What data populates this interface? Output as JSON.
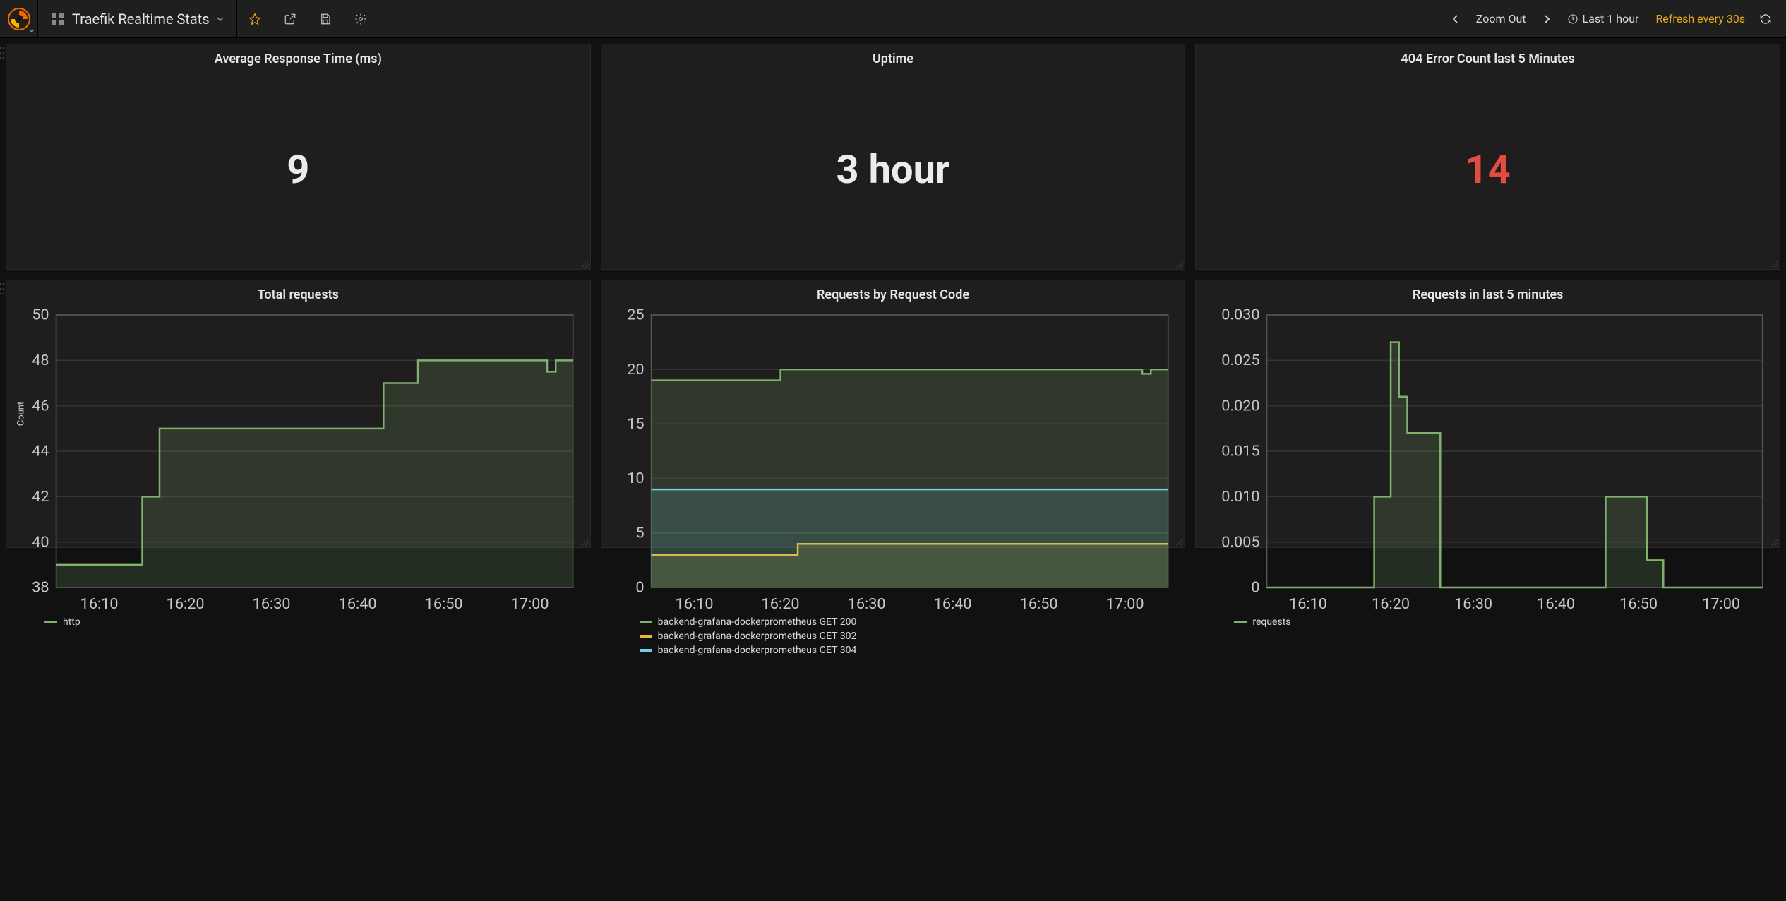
{
  "colors": {
    "bg": "#111111",
    "panel_bg": "#1f1d1d",
    "panel_border": "#292929",
    "text": "#d8d9da",
    "text_bright": "#e6e6e6",
    "accent": "#e6a817",
    "red": "#e24d42",
    "grid": "#333333",
    "axis": "#555555",
    "series_green": "#7eb26d",
    "series_green_fill": "rgba(126,178,109,0.18)",
    "series_yellow": "#eab839",
    "series_yellow_fill": "rgba(234,184,57,0.15)",
    "series_blue": "#6ed0e0",
    "series_blue_fill": "rgba(110,208,224,0.15)"
  },
  "header": {
    "dashboard_title": "Traefik Realtime Stats",
    "zoom_out_label": "Zoom Out",
    "time_range_label": "Last 1 hour",
    "refresh_label": "Refresh every 30s"
  },
  "panels": {
    "avg_response": {
      "title": "Average Response Time (ms)",
      "value": "9",
      "value_color": "#ececec",
      "font_size": 56
    },
    "uptime": {
      "title": "Uptime",
      "value": "3 hour",
      "value_color": "#ececec",
      "font_size": 56
    },
    "error_count": {
      "title": "404 Error Count last 5 Minutes",
      "value": "14",
      "value_color": "#e24d42",
      "font_size": 56
    },
    "total_requests": {
      "type": "line",
      "title": "Total requests",
      "y_label": "Count",
      "y_ticks": [
        38,
        40,
        42,
        44,
        46,
        48,
        50
      ],
      "ylim": [
        38,
        50
      ],
      "x_ticks": [
        "16:10",
        "16:20",
        "16:30",
        "16:40",
        "16:50",
        "17:00"
      ],
      "xlim_min": 965,
      "xlim_max": 1025,
      "series": [
        {
          "name": "http",
          "color": "#7eb26d",
          "fill": "rgba(126,178,109,0.18)",
          "line_width": 1.5,
          "points": [
            [
              965,
              39
            ],
            [
              975,
              39
            ],
            [
              975,
              42
            ],
            [
              977,
              42
            ],
            [
              977,
              45
            ],
            [
              1003,
              45
            ],
            [
              1003,
              47
            ],
            [
              1007,
              47
            ],
            [
              1007,
              48
            ],
            [
              1022,
              48
            ],
            [
              1022,
              47.5
            ],
            [
              1023,
              47.5
            ],
            [
              1023,
              48
            ],
            [
              1025,
              48
            ]
          ]
        }
      ]
    },
    "requests_by_code": {
      "type": "line",
      "title": "Requests by Request Code",
      "y_ticks": [
        0,
        5,
        10,
        15,
        20,
        25
      ],
      "ylim": [
        0,
        25
      ],
      "x_ticks": [
        "16:10",
        "16:20",
        "16:30",
        "16:40",
        "16:50",
        "17:00"
      ],
      "xlim_min": 965,
      "xlim_max": 1025,
      "series": [
        {
          "name": "backend-grafana-dockerprometheus GET 200",
          "color": "#7eb26d",
          "fill": "rgba(126,178,109,0.18)",
          "line_width": 1.5,
          "points": [
            [
              965,
              19
            ],
            [
              980,
              19
            ],
            [
              980,
              20
            ],
            [
              1022,
              20
            ],
            [
              1022,
              19.6
            ],
            [
              1023,
              19.6
            ],
            [
              1023,
              20
            ],
            [
              1025,
              20
            ]
          ]
        },
        {
          "name": "backend-grafana-dockerprometheus GET 302",
          "color": "#eab839",
          "fill": "rgba(234,184,57,0.15)",
          "line_width": 1.5,
          "points": [
            [
              965,
              3
            ],
            [
              982,
              3
            ],
            [
              982,
              4
            ],
            [
              1025,
              4
            ]
          ]
        },
        {
          "name": "backend-grafana-dockerprometheus GET 304",
          "color": "#6ed0e0",
          "fill": "rgba(110,208,224,0.15)",
          "line_width": 1.5,
          "points": [
            [
              965,
              9
            ],
            [
              1025,
              9
            ]
          ]
        }
      ]
    },
    "requests_5m": {
      "type": "line",
      "title": "Requests in last 5 minutes",
      "y_ticks": [
        0,
        0.005,
        0.01,
        0.015,
        0.02,
        0.025,
        0.03
      ],
      "y_tick_labels": [
        "0",
        "0.005",
        "0.010",
        "0.015",
        "0.020",
        "0.025",
        "0.030"
      ],
      "ylim": [
        0,
        0.03
      ],
      "x_ticks": [
        "16:10",
        "16:20",
        "16:30",
        "16:40",
        "16:50",
        "17:00"
      ],
      "xlim_min": 965,
      "xlim_max": 1025,
      "series": [
        {
          "name": "requests",
          "color": "#7eb26d",
          "fill": "rgba(126,178,109,0.18)",
          "line_width": 1.5,
          "points": [
            [
              965,
              0
            ],
            [
              978,
              0
            ],
            [
              978,
              0.01
            ],
            [
              980,
              0.01
            ],
            [
              980,
              0.027
            ],
            [
              981,
              0.027
            ],
            [
              981,
              0.021
            ],
            [
              982,
              0.021
            ],
            [
              982,
              0.017
            ],
            [
              986,
              0.017
            ],
            [
              986,
              0
            ],
            [
              1006,
              0
            ],
            [
              1006,
              0.01
            ],
            [
              1011,
              0.01
            ],
            [
              1011,
              0.003
            ],
            [
              1013,
              0.003
            ],
            [
              1013,
              0
            ],
            [
              1025,
              0
            ]
          ]
        }
      ]
    }
  }
}
